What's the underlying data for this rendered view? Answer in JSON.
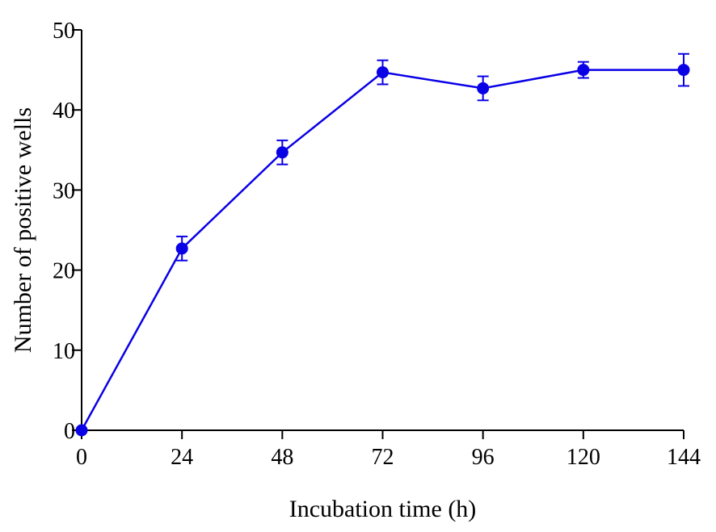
{
  "chart_data": {
    "type": "line",
    "title": "",
    "xlabel": "Incubation time (h)",
    "ylabel": "Number of positive wells",
    "xlim": [
      0,
      144
    ],
    "ylim": [
      0,
      50
    ],
    "xticks": [
      0,
      24,
      48,
      72,
      96,
      120,
      144
    ],
    "yticks": [
      0,
      10,
      20,
      30,
      40,
      50
    ],
    "grid": false,
    "legend": "none",
    "series": [
      {
        "color": "#0a00e6",
        "x": [
          0,
          24,
          48,
          72,
          96,
          120,
          144
        ],
        "y": [
          0,
          22.7,
          34.7,
          44.7,
          42.7,
          45.0,
          45.0
        ],
        "error": [
          0,
          1.5,
          1.5,
          1.5,
          1.5,
          1.0,
          2.0
        ]
      }
    ]
  }
}
